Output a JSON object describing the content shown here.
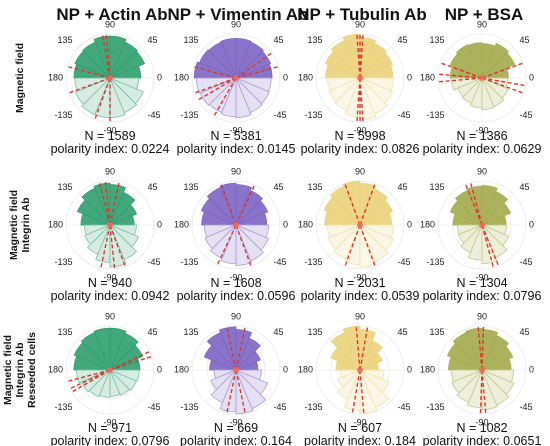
{
  "chart_data": {
    "type": "polar-histogram",
    "columns": [
      {
        "title": "NP + Actin Ab",
        "color": "#2f9e6e"
      },
      {
        "title": "NP + Vimentin Ab",
        "color": "#7d63c4"
      },
      {
        "title": "NP + Tubulin Ab",
        "color": "#ecd27a"
      },
      {
        "title": "NP + BSA",
        "color": "#a3ab4a"
      }
    ],
    "rows": [
      {
        "label_lines": [
          "Magnetic field"
        ]
      },
      {
        "label_lines": [
          "Magnetic field",
          "Integrin Ab"
        ]
      },
      {
        "label_lines": [
          "Magnetic field",
          "Integrin Ab",
          "Reseeded cells"
        ]
      }
    ],
    "angle_ticks": [
      "90",
      "45",
      "0",
      "-45",
      "-90",
      "-135",
      "180",
      "135"
    ],
    "bin_width_deg": 22.5,
    "bin_start_deg": 0,
    "panels": [
      [
        {
          "n_text": "N = 1589",
          "pi_text": "polarity index: 0.0224",
          "radii": [
            0.7,
            0.85,
            0.88,
            0.95,
            0.95,
            0.88,
            0.86,
            0.82,
            0.8,
            0.85,
            0.9,
            0.9,
            0.9,
            0.85,
            0.82,
            0.65
          ],
          "dashed_angles": [
            95,
            100,
            165,
            200,
            250,
            270
          ]
        },
        {
          "n_text": "N = 5381",
          "pi_text": "polarity index: 0.0145",
          "radii": [
            0.82,
            0.85,
            0.88,
            0.9,
            0.9,
            0.88,
            0.9,
            0.95,
            0.9,
            0.88,
            0.85,
            0.88,
            0.9,
            0.85,
            0.82,
            0.8
          ],
          "dashed_angles": [
            15,
            35,
            165,
            200,
            210,
            240
          ]
        },
        {
          "n_text": "N = 5998",
          "pi_text": "polarity index: 0.0826",
          "radii": [
            0.75,
            0.8,
            0.85,
            0.92,
            1.0,
            0.92,
            0.85,
            0.78,
            0.74,
            0.76,
            0.8,
            0.88,
            0.95,
            0.88,
            0.8,
            0.76
          ],
          "dashed_angles": [
            86,
            90,
            94,
            266,
            270,
            274
          ]
        },
        {
          "n_text": "N = 1386",
          "pi_text": "polarity index: 0.0629",
          "radii": [
            0.6,
            0.8,
            0.85,
            0.78,
            0.8,
            0.82,
            0.78,
            0.72,
            0.7,
            0.6,
            0.62,
            0.68,
            0.72,
            0.7,
            0.64,
            0.58
          ],
          "dashed_angles": [
            160,
            175,
            185,
            340,
            350,
            20
          ]
        }
      ],
      [
        {
          "n_text": "N = 940",
          "pi_text": "polarity index: 0.0942",
          "radii": [
            0.55,
            0.65,
            0.8,
            0.92,
            0.95,
            0.9,
            0.8,
            0.66,
            0.58,
            0.62,
            0.72,
            0.85,
            0.95,
            0.85,
            0.7,
            0.6
          ],
          "dashed_angles": [
            78,
            96,
            104,
            258,
            276,
            290
          ]
        },
        {
          "n_text": "N = 1608",
          "pi_text": "polarity index: 0.0596",
          "radii": [
            0.7,
            0.78,
            0.85,
            0.92,
            0.95,
            0.92,
            0.85,
            0.78,
            0.72,
            0.76,
            0.82,
            0.88,
            0.92,
            0.88,
            0.8,
            0.74
          ],
          "dashed_angles": [
            65,
            110,
            245,
            290
          ]
        },
        {
          "n_text": "N = 2031",
          "pi_text": "polarity index: 0.0539",
          "radii": [
            0.72,
            0.8,
            0.88,
            0.95,
            1.0,
            0.95,
            0.88,
            0.8,
            0.74,
            0.78,
            0.84,
            0.9,
            0.96,
            0.9,
            0.82,
            0.76
          ],
          "dashed_angles": [
            70,
            110,
            250,
            290
          ]
        },
        {
          "n_text": "N = 1304",
          "pi_text": "polarity index: 0.0796",
          "radii": [
            0.55,
            0.7,
            0.82,
            0.9,
            0.88,
            0.85,
            0.78,
            0.66,
            0.56,
            0.58,
            0.68,
            0.8,
            0.88,
            0.8,
            0.66,
            0.56
          ],
          "dashed_angles": [
            105,
            112,
            285,
            292
          ]
        }
      ],
      [
        {
          "n_text": "N = 971",
          "pi_text": "polarity index: 0.0796",
          "radii": [
            0.68,
            0.8,
            0.9,
            0.95,
            0.95,
            0.92,
            0.88,
            0.82,
            0.76,
            0.7,
            0.66,
            0.62,
            0.6,
            0.62,
            0.65,
            0.66
          ],
          "dashed_angles": [
            18,
            25,
            195,
            205,
            210
          ]
        },
        {
          "n_text": "N = 669",
          "pi_text": "polarity index: 0.164",
          "radii": [
            0.5,
            0.6,
            0.78,
            0.92,
            0.98,
            0.92,
            0.78,
            0.6,
            0.5,
            0.62,
            0.8,
            0.95,
            1.0,
            0.95,
            0.78,
            0.58
          ],
          "dashed_angles": [
            78,
            102,
            258,
            282
          ]
        },
        {
          "n_text": "N = 607",
          "pi_text": "polarity index: 0.184",
          "radii": [
            0.42,
            0.55,
            0.72,
            0.92,
            1.0,
            0.92,
            0.72,
            0.55,
            0.45,
            0.55,
            0.72,
            0.92,
            1.0,
            0.92,
            0.72,
            0.55
          ],
          "dashed_angles": [
            80,
            95,
            260,
            275
          ]
        },
        {
          "n_text": "N = 1082",
          "pi_text": "polarity index: 0.0651",
          "radii": [
            0.66,
            0.76,
            0.85,
            0.92,
            0.95,
            0.92,
            0.85,
            0.76,
            0.7,
            0.74,
            0.8,
            0.86,
            0.9,
            0.86,
            0.78,
            0.72
          ],
          "dashed_angles": [
            88,
            95,
            268,
            275
          ]
        }
      ]
    ]
  }
}
